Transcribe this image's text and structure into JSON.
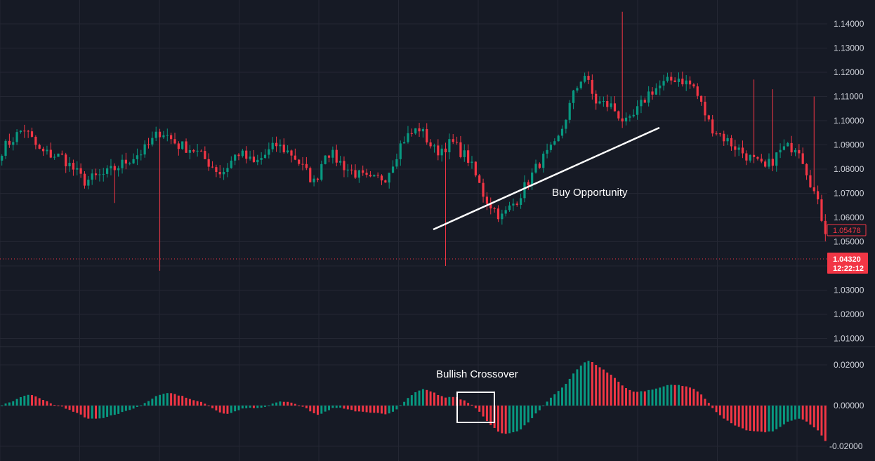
{
  "colors": {
    "background": "#161a25",
    "grid": "#242733",
    "up": "#089981",
    "down": "#f23645",
    "text": "#d1d4dc",
    "annotation": "#ffffff"
  },
  "chart_data": [
    {
      "type": "candlestick",
      "title": "",
      "y_axis_side": "right",
      "ylim": [
        1.005,
        1.15
      ],
      "y_ticks": [
        "1.14000",
        "1.13000",
        "1.12000",
        "1.11000",
        "1.10000",
        "1.09000",
        "1.08000",
        "1.07000",
        "1.06000",
        "1.05000",
        "1.04000",
        "1.03000",
        "1.02000",
        "1.01000"
      ],
      "grid": true,
      "candles_count": 220,
      "path_points": [
        [
          0,
          1.088
        ],
        [
          8,
          1.097
        ],
        [
          14,
          1.087
        ],
        [
          22,
          1.085
        ],
        [
          30,
          1.075
        ],
        [
          38,
          1.078
        ],
        [
          45,
          1.083
        ],
        [
          52,
          1.088
        ],
        [
          58,
          1.096
        ],
        [
          64,
          1.09
        ],
        [
          70,
          1.088
        ],
        [
          80,
          1.078
        ],
        [
          86,
          1.087
        ],
        [
          92,
          1.082
        ],
        [
          100,
          1.09
        ],
        [
          106,
          1.086
        ],
        [
          114,
          1.074
        ],
        [
          118,
          1.088
        ],
        [
          126,
          1.08
        ],
        [
          134,
          1.075
        ],
        [
          140,
          1.077
        ],
        [
          146,
          1.092
        ],
        [
          152,
          1.097
        ],
        [
          158,
          1.087
        ],
        [
          164,
          1.091
        ],
        [
          170,
          1.084
        ],
        [
          176,
          1.068
        ],
        [
          182,
          1.06
        ],
        [
          188,
          1.068
        ],
        [
          196,
          1.083
        ],
        [
          202,
          1.09
        ],
        [
          208,
          1.11
        ],
        [
          212,
          1.12
        ],
        [
          216,
          1.108
        ],
        [
          222,
          1.106
        ],
        [
          228,
          1.098
        ],
        [
          236,
          1.112
        ],
        [
          246,
          1.118
        ],
        [
          252,
          1.114
        ],
        [
          258,
          1.098
        ],
        [
          264,
          1.092
        ],
        [
          272,
          1.085
        ],
        [
          278,
          1.08
        ],
        [
          284,
          1.088
        ],
        [
          290,
          1.09
        ],
        [
          296,
          1.07
        ],
        [
          300,
          1.055
        ]
      ],
      "last_price": "1.05478",
      "current_price": {
        "value": "1.04320",
        "countdown": "12:22:12"
      },
      "annotations": [
        {
          "text": "Buy Opportunity"
        }
      ]
    },
    {
      "type": "histogram",
      "title": "",
      "ylim": [
        -0.022,
        0.025
      ],
      "y_ticks": [
        "0.02000",
        "0.00000",
        "-0.02000"
      ],
      "annotations": [
        {
          "text": "Bullish Crossover"
        }
      ]
    }
  ]
}
